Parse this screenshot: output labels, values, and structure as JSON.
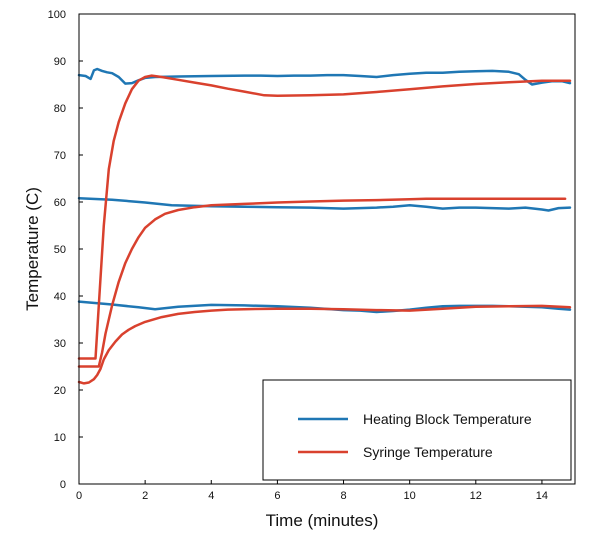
{
  "chart_data": {
    "type": "line",
    "title": "",
    "xlabel": "Time (minutes)",
    "ylabel": "Temperature (C)",
    "xlim": [
      0,
      15
    ],
    "ylim": [
      0,
      100
    ],
    "xticks": [
      0,
      2,
      4,
      6,
      8,
      10,
      12,
      14
    ],
    "yticks": [
      0,
      10,
      20,
      30,
      40,
      50,
      60,
      70,
      80,
      90,
      100
    ],
    "grid": false,
    "legend_position": "bottom-right",
    "legend": [
      {
        "label": "Heating Block Temperature",
        "color": "#1f77b4"
      },
      {
        "label": "Syringe Temperature",
        "color": "#d9412e"
      }
    ],
    "series": [
      {
        "name": "Heating Block Temperature (high)",
        "legend_group": "Heating Block Temperature",
        "color": "#1f77b4",
        "x": [
          0,
          0.2,
          0.35,
          0.45,
          0.55,
          0.7,
          0.85,
          1.0,
          1.2,
          1.4,
          1.6,
          1.8,
          2.0,
          2.3,
          3,
          4,
          5,
          5.5,
          6,
          6.5,
          7,
          7.5,
          8,
          8.5,
          9,
          9.5,
          10,
          10.5,
          11,
          11.5,
          12,
          12.5,
          13,
          13.3,
          13.5,
          13.7,
          14,
          14.3,
          14.6,
          14.85
        ],
        "y": [
          87,
          86.8,
          86.2,
          88,
          88.3,
          87.9,
          87.6,
          87.4,
          86.6,
          85.2,
          85.3,
          85.9,
          86.4,
          86.6,
          86.7,
          86.8,
          86.9,
          86.9,
          86.8,
          86.9,
          86.9,
          87,
          87,
          86.8,
          86.6,
          87,
          87.3,
          87.5,
          87.5,
          87.7,
          87.8,
          87.9,
          87.7,
          87.2,
          86,
          85,
          85.4,
          85.7,
          85.7,
          85.3
        ]
      },
      {
        "name": "Heating Block Temperature (mid)",
        "legend_group": "Heating Block Temperature",
        "color": "#1f77b4",
        "x": [
          0,
          1,
          2,
          2.8,
          4,
          5,
          6,
          7,
          8,
          9,
          9.5,
          10,
          10.5,
          11,
          11.5,
          12,
          12.5,
          13,
          13.5,
          14,
          14.2,
          14.5,
          14.85
        ],
        "y": [
          60.8,
          60.5,
          59.9,
          59.3,
          59.1,
          59,
          58.9,
          58.8,
          58.6,
          58.8,
          59,
          59.3,
          59,
          58.6,
          58.8,
          58.8,
          58.7,
          58.6,
          58.8,
          58.4,
          58.2,
          58.7,
          58.8
        ]
      },
      {
        "name": "Heating Block Temperature (low)",
        "legend_group": "Heating Block Temperature",
        "color": "#1f77b4",
        "x": [
          0,
          1,
          1.8,
          2.3,
          3,
          4,
          5,
          6,
          7,
          8,
          8.5,
          9,
          9.5,
          10,
          10.5,
          11,
          11.5,
          12,
          12.5,
          13,
          14,
          14.5,
          14.85
        ],
        "y": [
          38.8,
          38.2,
          37.6,
          37.2,
          37.7,
          38.1,
          38,
          37.8,
          37.5,
          37,
          36.9,
          36.6,
          36.8,
          37.1,
          37.5,
          37.8,
          37.9,
          37.9,
          37.9,
          37.8,
          37.6,
          37.3,
          37.1
        ]
      },
      {
        "name": "Syringe Temperature (high)",
        "legend_group": "Syringe Temperature",
        "color": "#d9412e",
        "x": [
          0,
          0.5,
          0.5,
          0.6,
          0.75,
          0.9,
          1.05,
          1.2,
          1.4,
          1.6,
          1.8,
          2.0,
          2.2,
          2.5,
          3,
          3.5,
          4,
          4.5,
          5,
          5.6,
          6,
          7,
          8,
          9,
          10,
          11,
          12,
          13,
          14,
          14.85
        ],
        "y": [
          26.7,
          26.7,
          26.7,
          38,
          55,
          67,
          73,
          77,
          81,
          84,
          85.8,
          86.6,
          86.9,
          86.6,
          86,
          85.4,
          84.8,
          84.1,
          83.5,
          82.7,
          82.6,
          82.7,
          82.9,
          83.4,
          84,
          84.6,
          85.1,
          85.5,
          85.8,
          85.8
        ]
      },
      {
        "name": "Syringe Temperature (mid)",
        "legend_group": "Syringe Temperature",
        "color": "#d9412e",
        "x": [
          0,
          0.6,
          0.6,
          0.7,
          0.8,
          1.0,
          1.2,
          1.4,
          1.6,
          1.8,
          2.0,
          2.3,
          2.6,
          3,
          3.5,
          4,
          5,
          6,
          7,
          8,
          9,
          10,
          10.5,
          11,
          12,
          13,
          14,
          14.7
        ],
        "y": [
          25,
          25,
          25,
          28,
          32,
          38,
          43,
          47,
          50,
          52.5,
          54.5,
          56.3,
          57.5,
          58.3,
          58.9,
          59.3,
          59.6,
          59.9,
          60.1,
          60.3,
          60.4,
          60.6,
          60.7,
          60.7,
          60.7,
          60.7,
          60.7,
          60.7
        ]
      },
      {
        "name": "Syringe Temperature (low)",
        "legend_group": "Syringe Temperature",
        "color": "#d9412e",
        "x": [
          0,
          0.15,
          0.3,
          0.45,
          0.55,
          0.65,
          0.75,
          0.9,
          1.1,
          1.3,
          1.5,
          1.7,
          2.0,
          2.5,
          3,
          3.5,
          4,
          4.5,
          5,
          6,
          7,
          8,
          9,
          10,
          11,
          12,
          13,
          14,
          14.85
        ],
        "y": [
          21.7,
          21.4,
          21.6,
          22.3,
          23.2,
          24.5,
          26.5,
          28.5,
          30.3,
          31.8,
          32.8,
          33.6,
          34.5,
          35.5,
          36.2,
          36.6,
          36.9,
          37.1,
          37.2,
          37.3,
          37.3,
          37.2,
          37,
          36.9,
          37.3,
          37.7,
          37.8,
          37.9,
          37.6
        ]
      }
    ]
  }
}
